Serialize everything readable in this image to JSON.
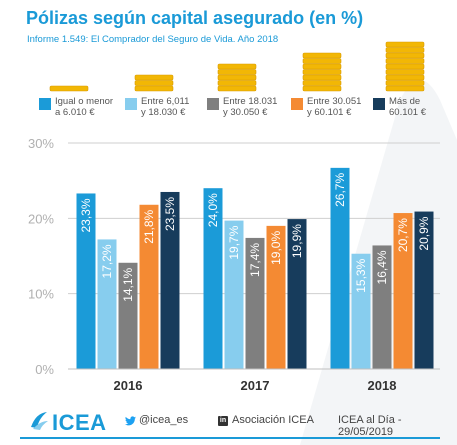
{
  "header": {
    "title": "Pólizas según capital asegurado (en %)",
    "subtitle": "Informe 1.549: El Comprador del Seguro de Vida. Año 2018"
  },
  "colors": {
    "accent": "#1a9ad7",
    "coins": "#f2b705"
  },
  "chart_data": {
    "type": "bar",
    "title": "Pólizas según capital asegurado (en %)",
    "categories": [
      "2016",
      "2017",
      "2018"
    ],
    "series": [
      {
        "name": "Igual o menor\na 6.010 €",
        "color": "#1b9bd8",
        "values": [
          23.3,
          24.0,
          26.7
        ],
        "labels": [
          "23,3%",
          "24,0%",
          "26,7%"
        ]
      },
      {
        "name": "Entre 6,011\ny 18.030 €",
        "color": "#87cdee",
        "values": [
          17.2,
          19.7,
          15.3
        ],
        "labels": [
          "17,2%",
          "19,7%",
          "15,3%"
        ]
      },
      {
        "name": "Entre 18.031\ny 30.050 €",
        "color": "#7f7f7f",
        "values": [
          14.1,
          17.4,
          16.4
        ],
        "labels": [
          "14,1%",
          "17,4%",
          "16,4%"
        ]
      },
      {
        "name": "Entre 30.051\ny 60.101 €",
        "color": "#f48a33",
        "values": [
          21.8,
          19.0,
          20.7
        ],
        "labels": [
          "21,8%",
          "19,0%",
          "20,7%"
        ]
      },
      {
        "name": "Más de\n60.101 €",
        "color": "#173c5c",
        "values": [
          23.5,
          19.9,
          20.9
        ],
        "labels": [
          "23,5%",
          "19,9%",
          "20,9%"
        ]
      }
    ],
    "yticks": [
      "0%",
      "10%",
      "20%",
      "30%"
    ],
    "ylim": [
      0,
      30
    ],
    "grid": true,
    "legend_position": "top"
  },
  "legend_coins": [
    1,
    2,
    3,
    4,
    5
  ],
  "footer": {
    "logo": "ICEA",
    "twitter": "@icea_es",
    "linkedin": "Asociación ICEA",
    "source": "ICEA al Día - 29/05/2019"
  }
}
